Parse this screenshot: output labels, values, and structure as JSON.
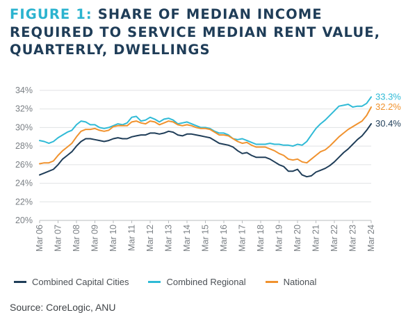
{
  "header": {
    "figure_label": "FIGURE 1:",
    "title_lines": [
      "SHARE OF MEDIAN INCOME",
      "REQUIRED TO SERVICE MEDIAN RENT VALUE,",
      "QUARTERLY, DWELLINGS"
    ]
  },
  "source": "Source: CoreLogic, ANU",
  "chart_data": {
    "type": "line",
    "title": "SHARE OF MEDIAN INCOME REQUIRED TO SERVICE MEDIAN RENT VALUE, QUARTERLY, DWELLINGS",
    "xlabel": "",
    "ylabel": "",
    "x_ticks": [
      "Mar 06",
      "Mar 07",
      "Mar 08",
      "Mar 09",
      "Mar 10",
      "Mar 11",
      "Mar 12",
      "Mar 13",
      "Mar 14",
      "Mar 15",
      "Mar 16",
      "Mar 17",
      "Mar 18",
      "Mar 19",
      "Mar 20",
      "Mar 21",
      "Mar 22",
      "Mar 23",
      "Mar 24"
    ],
    "xlim": [
      2006.0,
      2024.0
    ],
    "y_ticks": [
      "20%",
      "22%",
      "24%",
      "26%",
      "28%",
      "30%",
      "32%",
      "34%"
    ],
    "ylim": [
      20,
      34
    ],
    "grid": "horizontal",
    "legend_position": "bottom",
    "series": [
      {
        "name": "Combined Capital Cities",
        "color": "#1f3d58",
        "end_label": "30.4%",
        "points": [
          [
            2006.0,
            24.9
          ],
          [
            2006.25,
            25.1
          ],
          [
            2006.5,
            25.3
          ],
          [
            2006.75,
            25.5
          ],
          [
            2007.0,
            26.0
          ],
          [
            2007.25,
            26.6
          ],
          [
            2007.5,
            27.0
          ],
          [
            2007.75,
            27.4
          ],
          [
            2008.0,
            28.0
          ],
          [
            2008.25,
            28.5
          ],
          [
            2008.5,
            28.8
          ],
          [
            2008.75,
            28.8
          ],
          [
            2009.0,
            28.7
          ],
          [
            2009.25,
            28.6
          ],
          [
            2009.5,
            28.5
          ],
          [
            2009.75,
            28.6
          ],
          [
            2010.0,
            28.8
          ],
          [
            2010.25,
            28.9
          ],
          [
            2010.5,
            28.8
          ],
          [
            2010.75,
            28.8
          ],
          [
            2011.0,
            29.0
          ],
          [
            2011.25,
            29.1
          ],
          [
            2011.5,
            29.2
          ],
          [
            2011.75,
            29.2
          ],
          [
            2012.0,
            29.4
          ],
          [
            2012.25,
            29.4
          ],
          [
            2012.5,
            29.3
          ],
          [
            2012.75,
            29.4
          ],
          [
            2013.0,
            29.6
          ],
          [
            2013.25,
            29.5
          ],
          [
            2013.5,
            29.2
          ],
          [
            2013.75,
            29.1
          ],
          [
            2014.0,
            29.3
          ],
          [
            2014.25,
            29.3
          ],
          [
            2014.5,
            29.2
          ],
          [
            2014.75,
            29.1
          ],
          [
            2015.0,
            29.0
          ],
          [
            2015.25,
            28.9
          ],
          [
            2015.5,
            28.6
          ],
          [
            2015.75,
            28.3
          ],
          [
            2016.0,
            28.2
          ],
          [
            2016.25,
            28.1
          ],
          [
            2016.5,
            27.9
          ],
          [
            2016.75,
            27.5
          ],
          [
            2017.0,
            27.2
          ],
          [
            2017.25,
            27.3
          ],
          [
            2017.5,
            27.0
          ],
          [
            2017.75,
            26.8
          ],
          [
            2018.0,
            26.8
          ],
          [
            2018.25,
            26.8
          ],
          [
            2018.5,
            26.6
          ],
          [
            2018.75,
            26.3
          ],
          [
            2019.0,
            26.0
          ],
          [
            2019.25,
            25.8
          ],
          [
            2019.5,
            25.3
          ],
          [
            2019.75,
            25.3
          ],
          [
            2020.0,
            25.5
          ],
          [
            2020.25,
            24.9
          ],
          [
            2020.5,
            24.7
          ],
          [
            2020.75,
            24.8
          ],
          [
            2021.0,
            25.2
          ],
          [
            2021.25,
            25.4
          ],
          [
            2021.5,
            25.6
          ],
          [
            2021.75,
            25.9
          ],
          [
            2022.0,
            26.3
          ],
          [
            2022.25,
            26.8
          ],
          [
            2022.5,
            27.3
          ],
          [
            2022.75,
            27.7
          ],
          [
            2023.0,
            28.2
          ],
          [
            2023.25,
            28.7
          ],
          [
            2023.5,
            29.1
          ],
          [
            2023.75,
            29.7
          ],
          [
            2024.0,
            30.4
          ]
        ]
      },
      {
        "name": "Combined Regional",
        "color": "#2fbad6",
        "end_label": "33.3%",
        "points": [
          [
            2006.0,
            28.6
          ],
          [
            2006.25,
            28.5
          ],
          [
            2006.5,
            28.3
          ],
          [
            2006.75,
            28.5
          ],
          [
            2007.0,
            28.9
          ],
          [
            2007.25,
            29.2
          ],
          [
            2007.5,
            29.5
          ],
          [
            2007.75,
            29.7
          ],
          [
            2008.0,
            30.3
          ],
          [
            2008.25,
            30.7
          ],
          [
            2008.5,
            30.6
          ],
          [
            2008.75,
            30.3
          ],
          [
            2009.0,
            30.3
          ],
          [
            2009.25,
            30.0
          ],
          [
            2009.5,
            29.9
          ],
          [
            2009.75,
            30.0
          ],
          [
            2010.0,
            30.2
          ],
          [
            2010.25,
            30.4
          ],
          [
            2010.5,
            30.3
          ],
          [
            2010.75,
            30.5
          ],
          [
            2011.0,
            31.1
          ],
          [
            2011.25,
            31.2
          ],
          [
            2011.5,
            30.7
          ],
          [
            2011.75,
            30.8
          ],
          [
            2012.0,
            31.1
          ],
          [
            2012.25,
            30.9
          ],
          [
            2012.5,
            30.6
          ],
          [
            2012.75,
            30.9
          ],
          [
            2013.0,
            31.0
          ],
          [
            2013.25,
            30.8
          ],
          [
            2013.5,
            30.4
          ],
          [
            2013.75,
            30.5
          ],
          [
            2014.0,
            30.6
          ],
          [
            2014.25,
            30.4
          ],
          [
            2014.5,
            30.2
          ],
          [
            2014.75,
            30.0
          ],
          [
            2015.0,
            30.0
          ],
          [
            2015.25,
            29.9
          ],
          [
            2015.5,
            29.6
          ],
          [
            2015.75,
            29.4
          ],
          [
            2016.0,
            29.4
          ],
          [
            2016.25,
            29.2
          ],
          [
            2016.5,
            28.8
          ],
          [
            2016.75,
            28.7
          ],
          [
            2017.0,
            28.8
          ],
          [
            2017.25,
            28.6
          ],
          [
            2017.5,
            28.4
          ],
          [
            2017.75,
            28.2
          ],
          [
            2018.0,
            28.2
          ],
          [
            2018.25,
            28.2
          ],
          [
            2018.5,
            28.3
          ],
          [
            2018.75,
            28.2
          ],
          [
            2019.0,
            28.2
          ],
          [
            2019.25,
            28.1
          ],
          [
            2019.5,
            28.1
          ],
          [
            2019.75,
            28.0
          ],
          [
            2020.0,
            28.2
          ],
          [
            2020.25,
            28.1
          ],
          [
            2020.5,
            28.5
          ],
          [
            2020.75,
            29.2
          ],
          [
            2021.0,
            29.9
          ],
          [
            2021.25,
            30.4
          ],
          [
            2021.5,
            30.8
          ],
          [
            2021.75,
            31.3
          ],
          [
            2022.0,
            31.8
          ],
          [
            2022.25,
            32.3
          ],
          [
            2022.5,
            32.4
          ],
          [
            2022.75,
            32.5
          ],
          [
            2023.0,
            32.2
          ],
          [
            2023.25,
            32.3
          ],
          [
            2023.5,
            32.3
          ],
          [
            2023.75,
            32.6
          ],
          [
            2024.0,
            33.3
          ]
        ]
      },
      {
        "name": "National",
        "color": "#f0922e",
        "end_label": "32.2%",
        "points": [
          [
            2006.0,
            26.1
          ],
          [
            2006.25,
            26.2
          ],
          [
            2006.5,
            26.2
          ],
          [
            2006.75,
            26.4
          ],
          [
            2007.0,
            27.0
          ],
          [
            2007.25,
            27.5
          ],
          [
            2007.5,
            27.9
          ],
          [
            2007.75,
            28.3
          ],
          [
            2008.0,
            29.0
          ],
          [
            2008.25,
            29.6
          ],
          [
            2008.5,
            29.8
          ],
          [
            2008.75,
            29.8
          ],
          [
            2009.0,
            29.9
          ],
          [
            2009.25,
            29.7
          ],
          [
            2009.5,
            29.6
          ],
          [
            2009.75,
            29.7
          ],
          [
            2010.0,
            30.1
          ],
          [
            2010.25,
            30.2
          ],
          [
            2010.5,
            30.2
          ],
          [
            2010.75,
            30.2
          ],
          [
            2011.0,
            30.6
          ],
          [
            2011.25,
            30.7
          ],
          [
            2011.5,
            30.5
          ],
          [
            2011.75,
            30.4
          ],
          [
            2012.0,
            30.7
          ],
          [
            2012.25,
            30.6
          ],
          [
            2012.5,
            30.3
          ],
          [
            2012.75,
            30.5
          ],
          [
            2013.0,
            30.7
          ],
          [
            2013.25,
            30.6
          ],
          [
            2013.5,
            30.3
          ],
          [
            2013.75,
            30.2
          ],
          [
            2014.0,
            30.3
          ],
          [
            2014.25,
            30.2
          ],
          [
            2014.5,
            30.0
          ],
          [
            2014.75,
            29.9
          ],
          [
            2015.0,
            29.9
          ],
          [
            2015.25,
            29.8
          ],
          [
            2015.5,
            29.5
          ],
          [
            2015.75,
            29.2
          ],
          [
            2016.0,
            29.2
          ],
          [
            2016.25,
            29.1
          ],
          [
            2016.5,
            28.8
          ],
          [
            2016.75,
            28.5
          ],
          [
            2017.0,
            28.3
          ],
          [
            2017.25,
            28.4
          ],
          [
            2017.5,
            28.1
          ],
          [
            2017.75,
            27.9
          ],
          [
            2018.0,
            27.9
          ],
          [
            2018.25,
            27.9
          ],
          [
            2018.5,
            27.7
          ],
          [
            2018.75,
            27.5
          ],
          [
            2019.0,
            27.2
          ],
          [
            2019.25,
            27.0
          ],
          [
            2019.5,
            26.6
          ],
          [
            2019.75,
            26.5
          ],
          [
            2020.0,
            26.6
          ],
          [
            2020.25,
            26.3
          ],
          [
            2020.5,
            26.2
          ],
          [
            2020.75,
            26.6
          ],
          [
            2021.0,
            27.0
          ],
          [
            2021.25,
            27.4
          ],
          [
            2021.5,
            27.6
          ],
          [
            2021.75,
            28.0
          ],
          [
            2022.0,
            28.5
          ],
          [
            2022.25,
            29.0
          ],
          [
            2022.5,
            29.4
          ],
          [
            2022.75,
            29.8
          ],
          [
            2023.0,
            30.1
          ],
          [
            2023.25,
            30.4
          ],
          [
            2023.5,
            30.7
          ],
          [
            2023.75,
            31.3
          ],
          [
            2024.0,
            32.2
          ]
        ]
      }
    ]
  }
}
